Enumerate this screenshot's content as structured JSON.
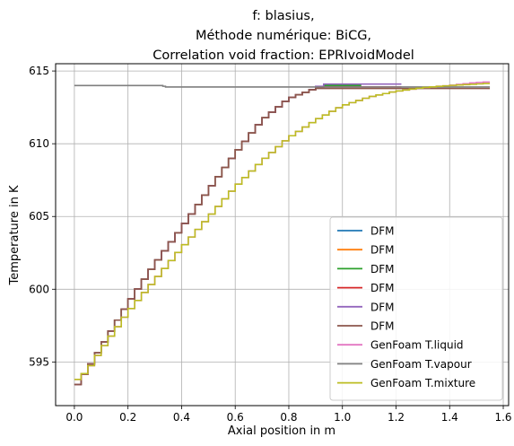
{
  "chart_data": {
    "type": "line",
    "title_lines": [
      "f: blasius,",
      "Méthode numérique: BiCG,",
      "Correlation void fraction: EPRIvoidModel"
    ],
    "xlabel": "Axial position in m",
    "ylabel": "Temperature in K",
    "xlim": [
      -0.07,
      1.62
    ],
    "ylim": [
      592.0,
      615.5
    ],
    "xticks": [
      0.0,
      0.2,
      0.4,
      0.6,
      0.8,
      1.0,
      1.2,
      1.4,
      1.6
    ],
    "xtick_labels": [
      "0.0",
      "0.2",
      "0.4",
      "0.6",
      "0.8",
      "1.0",
      "1.2",
      "1.4",
      "1.6"
    ],
    "yticks": [
      595,
      600,
      605,
      610,
      615
    ],
    "ytick_labels": [
      "595",
      "600",
      "605",
      "610",
      "615"
    ],
    "grid": true,
    "legend_position": "lower-right",
    "series": [
      {
        "name": "DFM",
        "color": "#1f77b4",
        "style": "step",
        "x": [
          0.0,
          0.05,
          0.1,
          0.2,
          0.3,
          0.4,
          0.5,
          0.6,
          0.7,
          0.8,
          0.9,
          0.93,
          1.07
        ],
        "y": [
          593.1,
          594.5,
          596.0,
          599.0,
          601.7,
          604.2,
          606.8,
          609.3,
          611.6,
          613.1,
          613.8,
          614.0,
          614.0
        ]
      },
      {
        "name": "DFM",
        "color": "#ff7f0e",
        "style": "step",
        "x": [
          0.0,
          0.05,
          0.1,
          0.2,
          0.3,
          0.4,
          0.5,
          0.6,
          0.7,
          0.8,
          0.9,
          0.93,
          1.07
        ],
        "y": [
          593.1,
          594.5,
          596.0,
          599.0,
          601.7,
          604.2,
          606.8,
          609.3,
          611.6,
          613.1,
          613.8,
          614.0,
          614.0
        ]
      },
      {
        "name": "DFM",
        "color": "#2ca02c",
        "style": "step",
        "x": [
          0.0,
          0.05,
          0.1,
          0.2,
          0.3,
          0.4,
          0.5,
          0.6,
          0.7,
          0.8,
          0.9,
          0.93,
          1.07
        ],
        "y": [
          593.1,
          594.5,
          596.0,
          599.0,
          601.7,
          604.2,
          606.8,
          609.3,
          611.6,
          613.1,
          613.8,
          614.0,
          614.0
        ]
      },
      {
        "name": "DFM",
        "color": "#d62728",
        "style": "step",
        "x": [
          0.0,
          0.05,
          0.1,
          0.2,
          0.3,
          0.4,
          0.5,
          0.6,
          0.7,
          0.8,
          0.9,
          0.93,
          1.22
        ],
        "y": [
          593.1,
          594.5,
          596.0,
          599.0,
          601.7,
          604.2,
          606.8,
          609.3,
          611.6,
          613.1,
          613.8,
          613.9,
          613.9
        ]
      },
      {
        "name": "DFM",
        "color": "#9467bd",
        "style": "step",
        "x": [
          0.0,
          0.05,
          0.1,
          0.2,
          0.3,
          0.4,
          0.5,
          0.6,
          0.7,
          0.8,
          0.9,
          0.93,
          1.22
        ],
        "y": [
          593.1,
          594.5,
          596.0,
          599.0,
          601.7,
          604.2,
          606.8,
          609.3,
          611.6,
          613.1,
          613.8,
          614.1,
          614.1
        ]
      },
      {
        "name": "DFM",
        "color": "#8c564b",
        "style": "step",
        "x": [
          0.0,
          0.05,
          0.1,
          0.2,
          0.3,
          0.4,
          0.5,
          0.6,
          0.7,
          0.8,
          0.9,
          0.93,
          1.55
        ],
        "y": [
          593.1,
          594.5,
          596.0,
          599.0,
          601.7,
          604.2,
          606.8,
          609.3,
          611.6,
          613.1,
          613.8,
          613.8,
          613.8
        ]
      },
      {
        "name": "GenFoam T.liquid",
        "color": "#e377c2",
        "style": "step",
        "x": [
          0.0,
          0.05,
          0.1,
          0.2,
          0.3,
          0.4,
          0.5,
          0.6,
          0.7,
          0.8,
          0.9,
          1.0,
          1.1,
          1.2,
          1.3,
          1.4,
          1.5,
          1.55
        ],
        "y": [
          593.6,
          594.4,
          595.8,
          598.4,
          600.6,
          602.8,
          604.9,
          607.0,
          608.8,
          610.4,
          611.6,
          612.6,
          613.2,
          613.6,
          613.85,
          614.0,
          614.2,
          614.25
        ]
      },
      {
        "name": "GenFoam T.vapour",
        "color": "#7f7f7f",
        "style": "step",
        "x": [
          0.0,
          0.33,
          0.34,
          1.55
        ],
        "y": [
          614.0,
          614.0,
          613.9,
          613.9
        ]
      },
      {
        "name": "GenFoam T.mixture",
        "color": "#bcbd22",
        "style": "step",
        "x": [
          0.0,
          0.05,
          0.1,
          0.2,
          0.3,
          0.4,
          0.5,
          0.6,
          0.7,
          0.8,
          0.9,
          1.0,
          1.1,
          1.2,
          1.3,
          1.4,
          1.5,
          1.55
        ],
        "y": [
          593.6,
          594.4,
          595.8,
          598.4,
          600.6,
          602.8,
          604.9,
          607.0,
          608.8,
          610.4,
          611.6,
          612.6,
          613.2,
          613.6,
          613.85,
          614.0,
          614.1,
          614.15
        ]
      }
    ]
  }
}
